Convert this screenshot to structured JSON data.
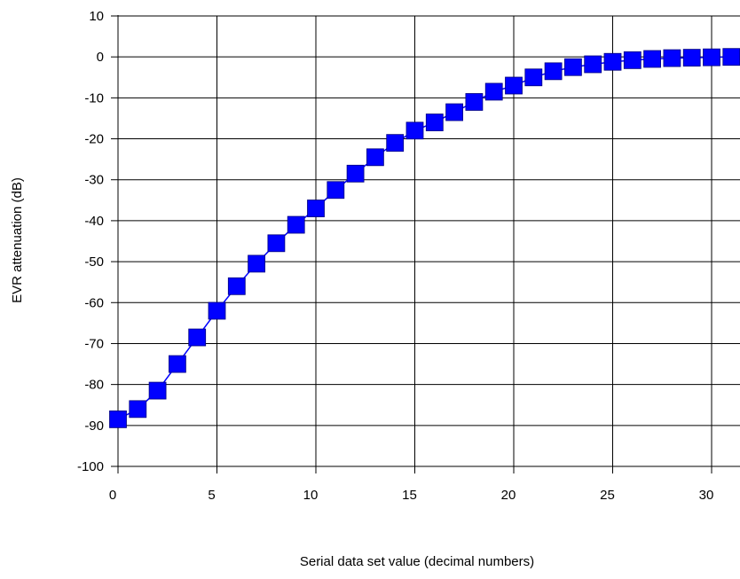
{
  "chart_data": {
    "type": "line",
    "title": "",
    "xlabel": "Serial data set value (decimal numbers)",
    "ylabel": "EVR attenuation (dB)",
    "xlim": [
      0,
      31.5
    ],
    "ylim": [
      -100,
      10
    ],
    "x_ticks": [
      0,
      5,
      10,
      15,
      20,
      25,
      30
    ],
    "y_ticks": [
      10,
      0,
      -10,
      -20,
      -30,
      -40,
      -50,
      -60,
      -70,
      -80,
      -90,
      -100
    ],
    "grid": true,
    "legend": "none",
    "series": [
      {
        "marker": "square",
        "color": "#0000ff",
        "x": [
          0,
          1,
          2,
          3,
          4,
          5,
          6,
          7,
          8,
          9,
          10,
          11,
          12,
          13,
          14,
          15,
          16,
          17,
          18,
          19,
          20,
          21,
          22,
          23,
          24,
          25,
          26,
          27,
          28,
          29,
          30,
          31
        ],
        "y": [
          -88.5,
          -86,
          -81.5,
          -75,
          -68.5,
          -62,
          -56,
          -50.5,
          -45.5,
          -41,
          -37,
          -32.5,
          -28.5,
          -24.5,
          -21,
          -18,
          -16,
          -13.5,
          -11,
          -8.5,
          -7,
          -5,
          -3.5,
          -2.5,
          -1.8,
          -1.2,
          -0.8,
          -0.5,
          -0.3,
          -0.2,
          -0.1,
          0
        ]
      }
    ]
  }
}
